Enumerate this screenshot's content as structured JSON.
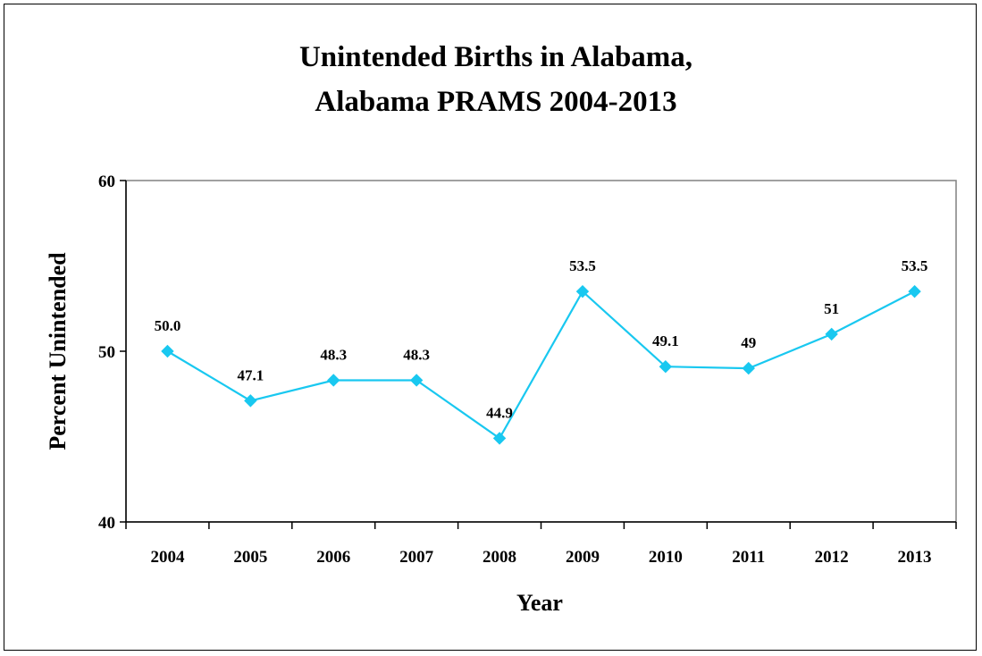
{
  "chart_data": {
    "type": "line",
    "title_line1": "Unintended Births in Alabama,",
    "title_line2": "Alabama PRAMS 2004-2013",
    "xlabel": "Year",
    "ylabel": "Percent Unintended",
    "categories": [
      "2004",
      "2005",
      "2006",
      "2007",
      "2008",
      "2009",
      "2010",
      "2011",
      "2012",
      "2013"
    ],
    "values": [
      50.0,
      47.1,
      48.3,
      48.3,
      44.9,
      53.5,
      49.1,
      49.0,
      51.0,
      53.5
    ],
    "data_labels": [
      "50.0",
      "47.1",
      "48.3",
      "48.3",
      "44.9",
      "53.5",
      "49.1",
      "49",
      "51",
      "53.5"
    ],
    "ylim": [
      40,
      60
    ],
    "yticks": [
      "40",
      "50",
      "60"
    ],
    "grid": false,
    "legend": "none",
    "line_color": "#19C8F0",
    "marker": "diamond"
  }
}
